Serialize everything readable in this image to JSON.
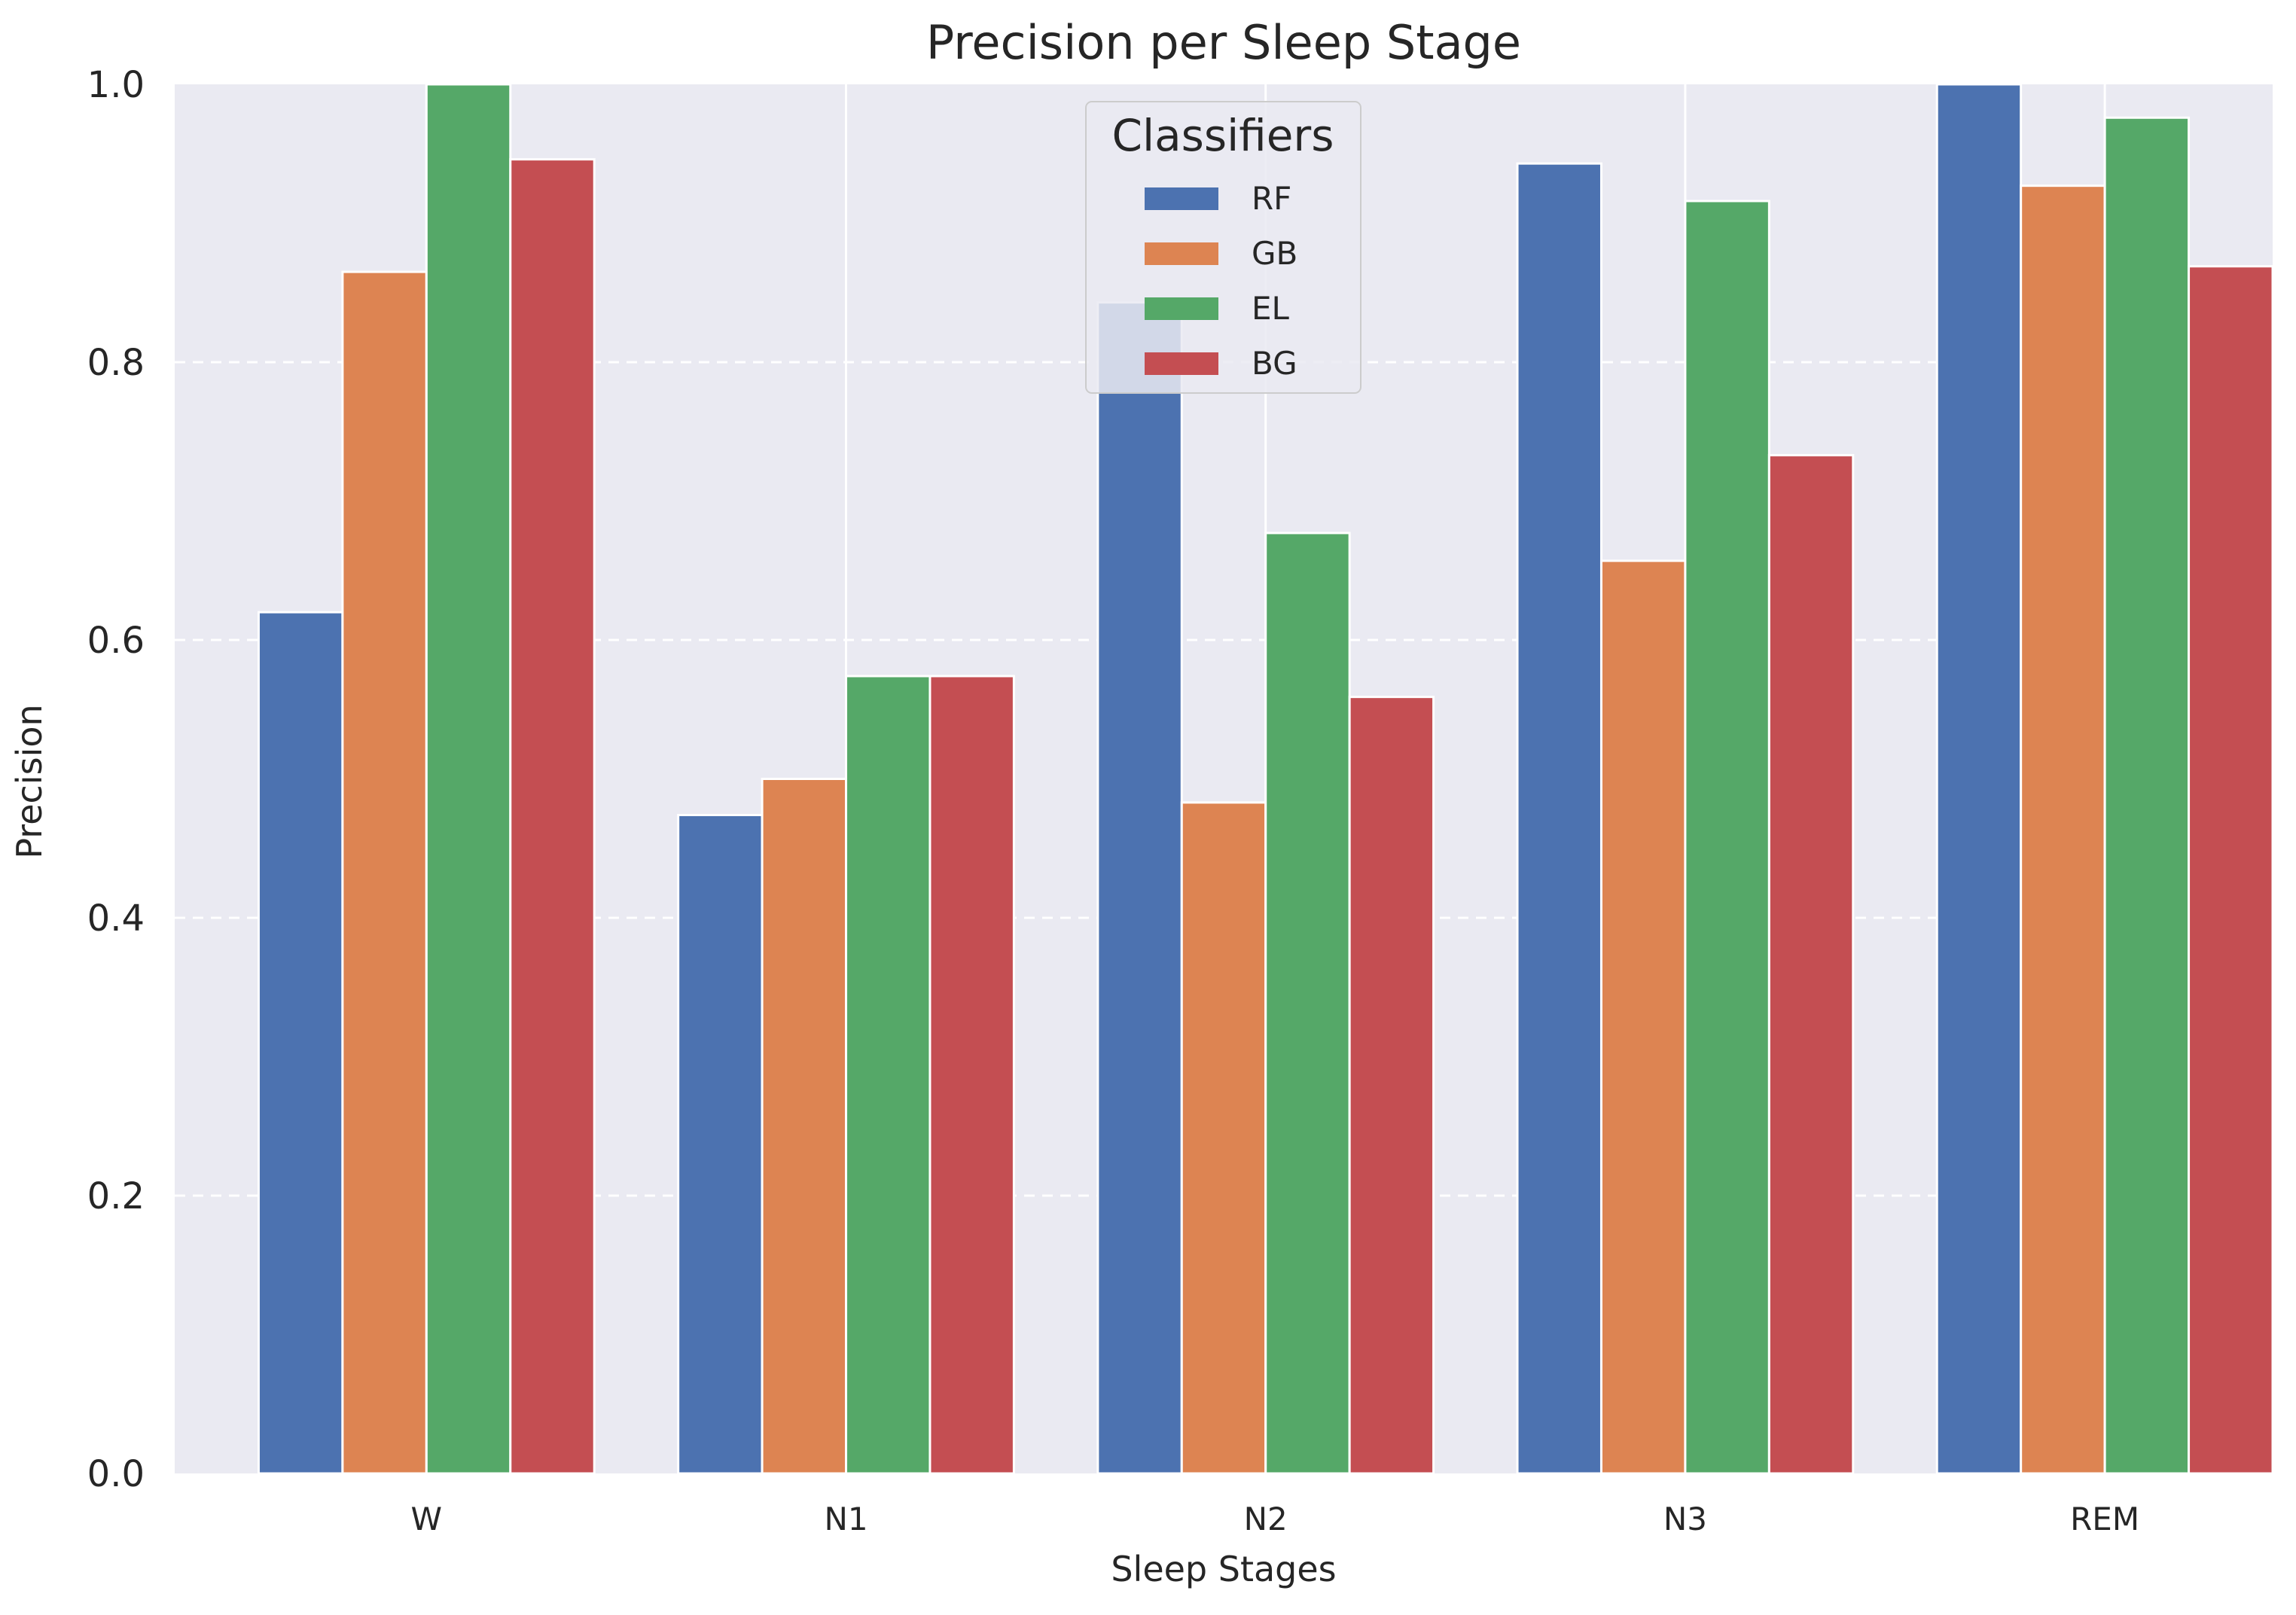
{
  "chart_data": {
    "type": "bar",
    "title": "Precision per Sleep Stage",
    "xlabel": "Sleep Stages",
    "ylabel": "Precision",
    "categories": [
      "W",
      "N1",
      "N2",
      "N3",
      "REM"
    ],
    "ylim": [
      0,
      1.0
    ],
    "yticks": [
      "0.0",
      "0.2",
      "0.4",
      "0.6",
      "0.8",
      "1.0"
    ],
    "grid": true,
    "legend": {
      "title": "Classifiers",
      "placement": "upper center"
    },
    "series": [
      {
        "name": "RF",
        "color": "#4c72b0",
        "values": [
          0.62,
          0.474,
          0.843,
          0.943,
          1.0
        ]
      },
      {
        "name": "GB",
        "color": "#dd8452",
        "values": [
          0.865,
          0.5,
          0.483,
          0.657,
          0.927
        ]
      },
      {
        "name": "EL",
        "color": "#55a868",
        "values": [
          1.0,
          0.574,
          0.677,
          0.916,
          0.976
        ]
      },
      {
        "name": "BG",
        "color": "#c44e52",
        "values": [
          0.946,
          0.574,
          0.559,
          0.733,
          0.869
        ]
      }
    ],
    "colors": {
      "plot_background": "#eaeaf2",
      "grid": "#ffffff"
    }
  }
}
